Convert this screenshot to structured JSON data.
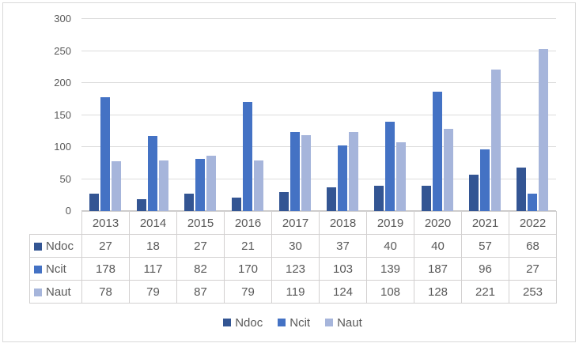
{
  "chart_data": {
    "type": "bar",
    "title": "",
    "categories": [
      "2013",
      "2014",
      "2015",
      "2016",
      "2017",
      "2018",
      "2019",
      "2020",
      "2021",
      "2022"
    ],
    "series": [
      {
        "name": "Ndoc",
        "color": "#335593",
        "values": [
          27,
          18,
          27,
          21,
          30,
          37,
          40,
          40,
          57,
          68
        ]
      },
      {
        "name": "Ncit",
        "color": "#4472c4",
        "values": [
          178,
          117,
          82,
          170,
          123,
          103,
          139,
          187,
          96,
          27
        ]
      },
      {
        "name": "Naut",
        "color": "#a6b5db",
        "values": [
          78,
          79,
          87,
          79,
          119,
          124,
          108,
          128,
          221,
          253
        ]
      }
    ],
    "xlabel": "",
    "ylabel": "",
    "ylim": [
      0,
      300
    ],
    "yticks": [
      0,
      50,
      100,
      150,
      200,
      250,
      300
    ],
    "grid": true,
    "legend_position": "bottom",
    "has_data_table": true
  },
  "colors": {
    "gridline": "#dcdcdc",
    "axis_line": "#c9c7c7",
    "table_border": "#d2d0d0",
    "text": "#595959",
    "frame_border": "#d9d9d9",
    "background": "#ffffff"
  }
}
